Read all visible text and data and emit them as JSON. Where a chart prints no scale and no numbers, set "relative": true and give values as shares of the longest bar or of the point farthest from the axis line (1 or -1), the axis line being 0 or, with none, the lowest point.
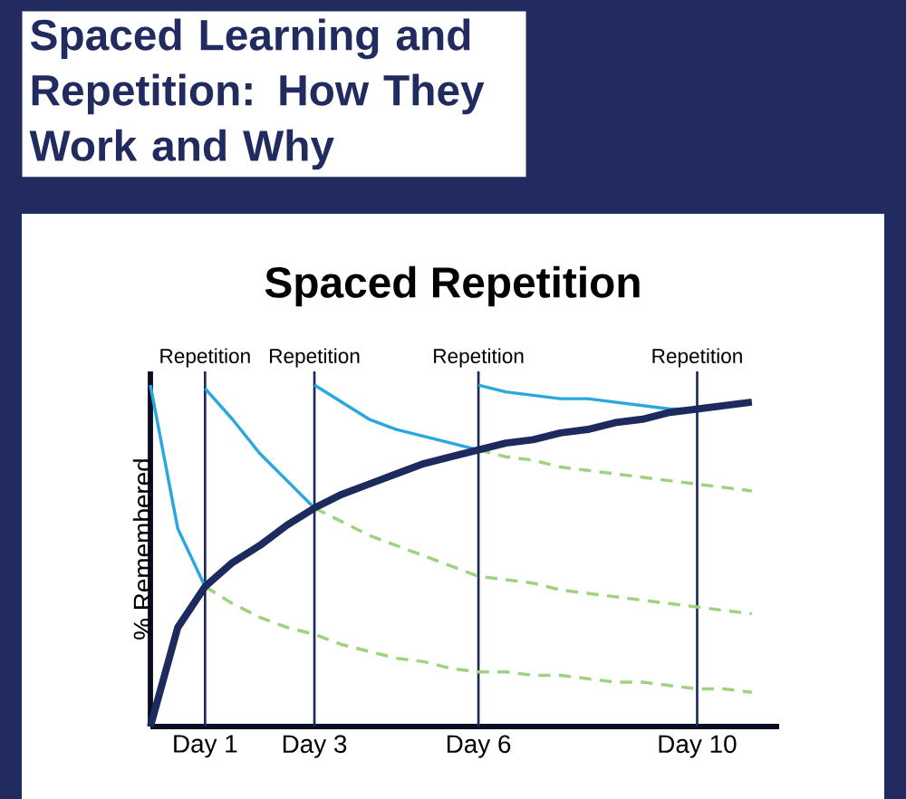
{
  "chart_data": {
    "type": "line",
    "title": "Spaced Learning and Repetition: How They Work and Why",
    "subtitle": "Spaced Repetition",
    "ylabel": "% Remembered",
    "relative": true,
    "categories": [
      null,
      null,
      "Day 1",
      null,
      null,
      null,
      "Day 3",
      null,
      null,
      null,
      null,
      null,
      "Day 6",
      null,
      null,
      null,
      null,
      null,
      null,
      null,
      "Day 10",
      null,
      null,
      null
    ],
    "series": [
      {
        "color": "#1c2a5e",
        "values": [
          0,
          0.29,
          0.41,
          0.48,
          0.53,
          0.59,
          0.64,
          0.68,
          0.71,
          0.74,
          0.77,
          0.79,
          0.81,
          0.83,
          0.84,
          0.86,
          0.87,
          0.89,
          0.9,
          0.92,
          0.93,
          0.94,
          0.95,
          null
        ]
      },
      {
        "color": "#29a8e0",
        "values": [
          1.0,
          0.58,
          0.41,
          null,
          null,
          null,
          null,
          null,
          null,
          null,
          null,
          null,
          null,
          null,
          null,
          null,
          null,
          null,
          null,
          null,
          null,
          null,
          null,
          null
        ]
      },
      {
        "color": "#29a8e0",
        "values": [
          null,
          null,
          0.99,
          0.9,
          0.8,
          0.72,
          0.64,
          null,
          null,
          null,
          null,
          null,
          null,
          null,
          null,
          null,
          null,
          null,
          null,
          null,
          null,
          null,
          null,
          null
        ]
      },
      {
        "color": "#29a8e0",
        "values": [
          null,
          null,
          null,
          null,
          null,
          null,
          1.0,
          0.95,
          0.9,
          0.87,
          0.85,
          0.83,
          0.81,
          null,
          null,
          null,
          null,
          null,
          null,
          null,
          null,
          null,
          null,
          null
        ]
      },
      {
        "color": "#29a8e0",
        "values": [
          null,
          null,
          null,
          null,
          null,
          null,
          null,
          null,
          null,
          null,
          null,
          null,
          1.0,
          0.98,
          0.97,
          0.96,
          0.96,
          0.95,
          0.94,
          0.93,
          0.93,
          null,
          null,
          null
        ]
      },
      {
        "color": "#9fd27f",
        "line_style": "dashed",
        "values": [
          null,
          null,
          0.41,
          0.36,
          0.32,
          0.29,
          0.27,
          0.24,
          0.22,
          0.2,
          0.19,
          0.17,
          0.16,
          0.16,
          0.15,
          0.15,
          0.14,
          0.13,
          0.13,
          0.12,
          0.11,
          0.11,
          0.1,
          null
        ]
      },
      {
        "color": "#9fd27f",
        "line_style": "dashed",
        "values": [
          null,
          null,
          null,
          null,
          null,
          null,
          0.64,
          0.6,
          0.56,
          0.53,
          0.5,
          0.47,
          0.44,
          0.43,
          0.42,
          0.4,
          0.39,
          0.38,
          0.37,
          0.36,
          0.35,
          0.34,
          0.33,
          null
        ]
      },
      {
        "color": "#9fd27f",
        "line_style": "dashed",
        "values": [
          null,
          null,
          null,
          null,
          null,
          null,
          null,
          null,
          null,
          null,
          null,
          null,
          0.81,
          0.79,
          0.78,
          0.76,
          0.75,
          0.74,
          0.73,
          0.72,
          0.71,
          0.7,
          0.69,
          null
        ]
      }
    ],
    "ref_lines": [
      {
        "axis": "x",
        "value": "Day 1",
        "label": "Repetition",
        "color": "#1c2a5e"
      },
      {
        "axis": "x",
        "value": "Day 3",
        "label": "Repetition",
        "color": "#1c2a5e"
      },
      {
        "axis": "x",
        "value": "Day 6",
        "label": "Repetition",
        "color": "#1c2a5e"
      },
      {
        "axis": "x",
        "value": "Day 10",
        "label": "Repetition",
        "color": "#1c2a5e"
      }
    ]
  }
}
